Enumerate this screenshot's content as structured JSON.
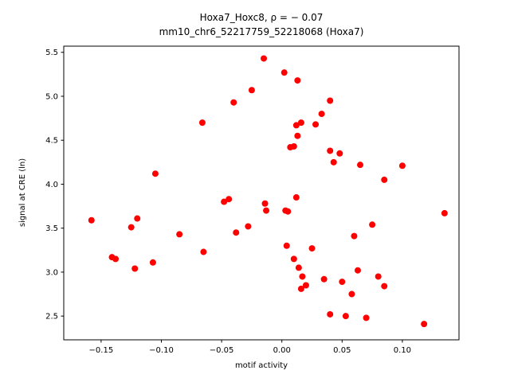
{
  "figure": {
    "title": "Hoxa7_Hoxc8, ρ = − 0.07",
    "subtitle": "mm10_chr6_52217759_52218068 (Hoxa7)"
  },
  "chart_data": {
    "type": "scatter",
    "title": "Hoxa7_Hoxc8, ρ = − 0.07",
    "subtitle": "mm10_chr6_52217759_52218068 (Hoxa7)",
    "xlabel": "motif activity",
    "ylabel": "signal at CRE (ln)",
    "xlim": [
      -0.181,
      0.147
    ],
    "ylim": [
      2.23,
      5.57
    ],
    "grid": false,
    "legend": "none",
    "marker_color": "#ff0000",
    "marker_size": 4,
    "xticks": [
      {
        "value": -0.15,
        "label": "−0.15"
      },
      {
        "value": -0.1,
        "label": "−0.10"
      },
      {
        "value": -0.05,
        "label": "−0.05"
      },
      {
        "value": 0.0,
        "label": "0.00"
      },
      {
        "value": 0.05,
        "label": "0.05"
      },
      {
        "value": 0.1,
        "label": "0.10"
      }
    ],
    "yticks": [
      {
        "value": 2.5,
        "label": "2.5"
      },
      {
        "value": 3.0,
        "label": "3.0"
      },
      {
        "value": 3.5,
        "label": "3.5"
      },
      {
        "value": 4.0,
        "label": "4.0"
      },
      {
        "value": 4.5,
        "label": "4.5"
      },
      {
        "value": 5.0,
        "label": "5.0"
      },
      {
        "value": 5.5,
        "label": "5.5"
      }
    ],
    "points": [
      [
        -0.158,
        3.59
      ],
      [
        -0.141,
        3.17
      ],
      [
        -0.138,
        3.15
      ],
      [
        -0.125,
        3.51
      ],
      [
        -0.12,
        3.61
      ],
      [
        -0.122,
        3.04
      ],
      [
        -0.107,
        3.11
      ],
      [
        -0.105,
        4.12
      ],
      [
        -0.085,
        3.43
      ],
      [
        -0.066,
        4.7
      ],
      [
        -0.065,
        3.23
      ],
      [
        -0.048,
        3.8
      ],
      [
        -0.044,
        3.83
      ],
      [
        -0.04,
        4.93
      ],
      [
        -0.038,
        3.45
      ],
      [
        -0.028,
        3.52
      ],
      [
        -0.025,
        5.07
      ],
      [
        -0.015,
        5.43
      ],
      [
        -0.014,
        3.78
      ],
      [
        -0.013,
        3.7
      ],
      [
        0.002,
        5.27
      ],
      [
        0.003,
        3.7
      ],
      [
        0.005,
        3.69
      ],
      [
        0.007,
        4.42
      ],
      [
        0.01,
        4.43
      ],
      [
        0.012,
        3.85
      ],
      [
        0.013,
        5.18
      ],
      [
        0.013,
        4.55
      ],
      [
        0.012,
        4.67
      ],
      [
        0.016,
        4.7
      ],
      [
        0.004,
        3.3
      ],
      [
        0.01,
        3.15
      ],
      [
        0.014,
        3.05
      ],
      [
        0.017,
        2.95
      ],
      [
        0.016,
        2.81
      ],
      [
        0.02,
        2.85
      ],
      [
        0.025,
        3.27
      ],
      [
        0.028,
        4.68
      ],
      [
        0.033,
        4.8
      ],
      [
        0.035,
        2.92
      ],
      [
        0.04,
        4.95
      ],
      [
        0.04,
        4.38
      ],
      [
        0.043,
        4.25
      ],
      [
        0.048,
        4.35
      ],
      [
        0.04,
        2.52
      ],
      [
        0.05,
        2.89
      ],
      [
        0.053,
        2.5
      ],
      [
        0.058,
        2.75
      ],
      [
        0.06,
        3.41
      ],
      [
        0.063,
        3.02
      ],
      [
        0.065,
        4.22
      ],
      [
        0.07,
        2.48
      ],
      [
        0.075,
        3.54
      ],
      [
        0.08,
        2.95
      ],
      [
        0.085,
        2.84
      ],
      [
        0.085,
        4.05
      ],
      [
        0.1,
        4.21
      ],
      [
        0.118,
        2.41
      ],
      [
        0.135,
        3.67
      ]
    ]
  }
}
